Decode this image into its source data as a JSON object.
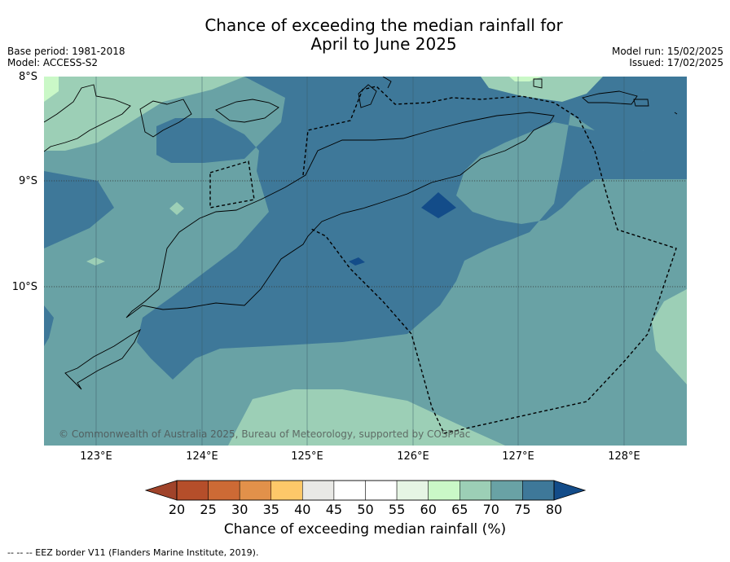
{
  "title": {
    "line1": "Chance of exceeding the median rainfall for",
    "line2": "April to June 2025"
  },
  "meta_left": {
    "base_period": "Base period: 1981-2018",
    "model": "Model: ACCESS-S2"
  },
  "meta_right": {
    "model_run": "Model run: 15/02/2025",
    "issued": "Issued: 17/02/2025"
  },
  "map": {
    "lat_labels": [
      "8°S",
      "9°S",
      "10°S"
    ],
    "lon_labels": [
      "123°E",
      "124°E",
      "125°E",
      "126°E",
      "127°E",
      "128°E"
    ],
    "copyright": "© Commonwealth of Australia 2025, Bureau of Meteorology, supported by COSPPac"
  },
  "colorbar": {
    "ticks": [
      "20",
      "25",
      "30",
      "35",
      "40",
      "45",
      "50",
      "55",
      "60",
      "65",
      "70",
      "75",
      "80"
    ],
    "colors": [
      "#a0432a",
      "#b54e2a",
      "#cd6a35",
      "#e2914a",
      "#fdc869",
      "#e9e9e6",
      "#ffffff",
      "#ffffff",
      "#e6f5e4",
      "#caf8c7",
      "#9ccfb6",
      "#69a2a5",
      "#3e7899",
      "#134c89"
    ],
    "label": "Chance of exceeding median rainfall (%)"
  },
  "eez_note": "--  --  -- EEZ border V11 (Flanders Marine Institute, 2019)."
}
